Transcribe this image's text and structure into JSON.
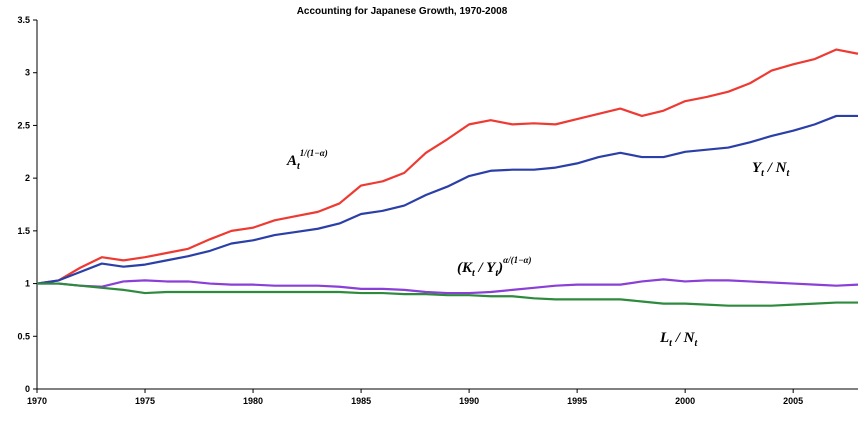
{
  "chart_data": {
    "type": "line",
    "title": "Accounting for Japanese Growth, 1970-2008",
    "x": [
      1970,
      1971,
      1972,
      1973,
      1974,
      1975,
      1976,
      1977,
      1978,
      1979,
      1980,
      1981,
      1982,
      1983,
      1984,
      1985,
      1986,
      1987,
      1988,
      1989,
      1990,
      1991,
      1992,
      1993,
      1994,
      1995,
      1996,
      1997,
      1998,
      1999,
      2000,
      2001,
      2002,
      2003,
      2004,
      2005,
      2006,
      2007,
      2008
    ],
    "xlim": [
      1970,
      2008
    ],
    "xticks": [
      1970,
      1975,
      1980,
      1985,
      1990,
      1995,
      2000,
      2005
    ],
    "ylim": [
      0,
      3.5
    ],
    "yticks": [
      0,
      0.5,
      1,
      1.5,
      2,
      2.5,
      3,
      3.5
    ],
    "series": [
      {
        "color": "#ee3a33",
        "label": [
          {
            "text": "A",
            "pos": "base"
          },
          {
            "text": "t",
            "pos": "sub"
          },
          {
            "text": "1/(1−α)",
            "pos": "sup"
          }
        ],
        "values": [
          1.0,
          1.03,
          1.15,
          1.25,
          1.22,
          1.25,
          1.29,
          1.33,
          1.42,
          1.5,
          1.53,
          1.6,
          1.64,
          1.68,
          1.76,
          1.93,
          1.97,
          2.05,
          2.24,
          2.37,
          2.51,
          2.55,
          2.51,
          2.52,
          2.51,
          2.56,
          2.61,
          2.66,
          2.59,
          2.64,
          2.73,
          2.77,
          2.82,
          2.9,
          3.02,
          3.08,
          3.13,
          3.22,
          3.18
        ]
      },
      {
        "color": "#2b3fa8",
        "label": [
          {
            "text": "Y",
            "pos": "base"
          },
          {
            "text": "t",
            "pos": "sub"
          },
          {
            "text": " / N",
            "pos": "base"
          },
          {
            "text": "t",
            "pos": "sub"
          }
        ],
        "values": [
          1.0,
          1.03,
          1.11,
          1.19,
          1.16,
          1.18,
          1.22,
          1.26,
          1.31,
          1.38,
          1.41,
          1.46,
          1.49,
          1.52,
          1.57,
          1.66,
          1.69,
          1.74,
          1.84,
          1.92,
          2.02,
          2.07,
          2.08,
          2.08,
          2.1,
          2.14,
          2.2,
          2.24,
          2.2,
          2.2,
          2.25,
          2.27,
          2.29,
          2.34,
          2.4,
          2.45,
          2.51,
          2.59,
          2.59
        ]
      },
      {
        "color": "#8a3fd6",
        "label": [
          {
            "text": "(K",
            "pos": "base"
          },
          {
            "text": "t",
            "pos": "sub"
          },
          {
            "text": " / Y",
            "pos": "base"
          },
          {
            "text": "t",
            "pos": "sub"
          },
          {
            "text": ")",
            "pos": "base"
          },
          {
            "text": "α/(1−α)",
            "pos": "sup"
          }
        ],
        "values": [
          1.0,
          1.0,
          0.98,
          0.97,
          1.02,
          1.03,
          1.02,
          1.02,
          1.0,
          0.99,
          0.99,
          0.98,
          0.98,
          0.98,
          0.97,
          0.95,
          0.95,
          0.94,
          0.92,
          0.91,
          0.91,
          0.92,
          0.94,
          0.96,
          0.98,
          0.99,
          0.99,
          0.99,
          1.02,
          1.04,
          1.02,
          1.03,
          1.03,
          1.02,
          1.01,
          1.0,
          0.99,
          0.98,
          0.99
        ]
      },
      {
        "color": "#2e8b3e",
        "label": [
          {
            "text": "L",
            "pos": "base"
          },
          {
            "text": "t",
            "pos": "sub"
          },
          {
            "text": " / N",
            "pos": "base"
          },
          {
            "text": "t",
            "pos": "sub"
          }
        ],
        "values": [
          1.0,
          1.0,
          0.98,
          0.96,
          0.94,
          0.91,
          0.92,
          0.92,
          0.92,
          0.92,
          0.92,
          0.92,
          0.92,
          0.92,
          0.92,
          0.91,
          0.91,
          0.9,
          0.9,
          0.89,
          0.89,
          0.88,
          0.88,
          0.86,
          0.85,
          0.85,
          0.85,
          0.85,
          0.83,
          0.81,
          0.81,
          0.8,
          0.79,
          0.79,
          0.79,
          0.8,
          0.81,
          0.82,
          0.82
        ]
      }
    ]
  }
}
